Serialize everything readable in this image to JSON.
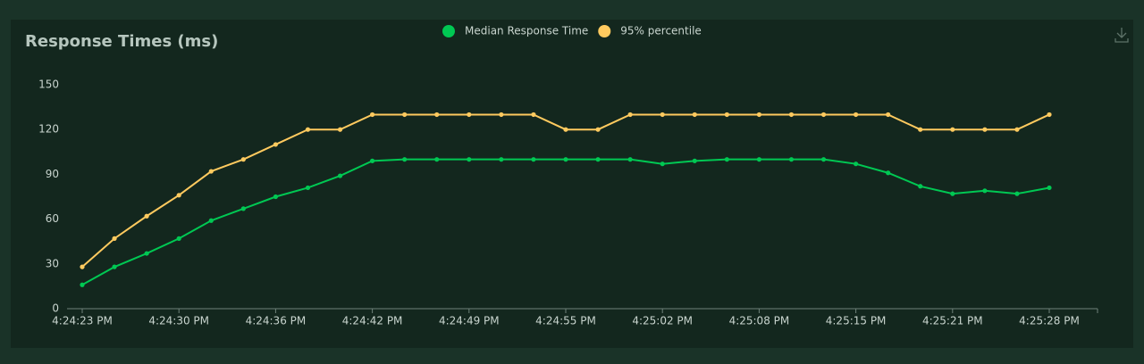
{
  "chart_data": {
    "type": "line",
    "title": "Response Times (ms)",
    "categories": [
      "4:24:23 PM",
      null,
      null,
      "4:24:30 PM",
      null,
      null,
      "4:24:36 PM",
      null,
      null,
      "4:24:42 PM",
      null,
      null,
      "4:24:49 PM",
      null,
      null,
      "4:24:55 PM",
      null,
      null,
      "4:25:02 PM",
      null,
      null,
      "4:25:08 PM",
      null,
      null,
      "4:25:15 PM",
      null,
      null,
      "4:25:21 PM",
      null,
      null,
      "4:25:28 PM"
    ],
    "series": [
      {
        "name": "Median Response Time",
        "color": "#00c853",
        "values": [
          16,
          28,
          37,
          47,
          59,
          67,
          75,
          81,
          89,
          99,
          100,
          100,
          100,
          100,
          100,
          100,
          100,
          100,
          97,
          99,
          100,
          100,
          100,
          100,
          97,
          91,
          82,
          77,
          79,
          77,
          81
        ]
      },
      {
        "name": "95% percentile",
        "color": "#ffca5f",
        "values": [
          28,
          47,
          62,
          76,
          92,
          100,
          110,
          120,
          120,
          130,
          130,
          130,
          130,
          130,
          130,
          120,
          120,
          130,
          130,
          130,
          130,
          130,
          130,
          130,
          130,
          130,
          120,
          120,
          120,
          120,
          130
        ]
      }
    ],
    "ylim": [
      0,
      150
    ],
    "yticks": [
      0,
      30,
      60,
      90,
      120,
      150
    ],
    "legend": "top"
  }
}
